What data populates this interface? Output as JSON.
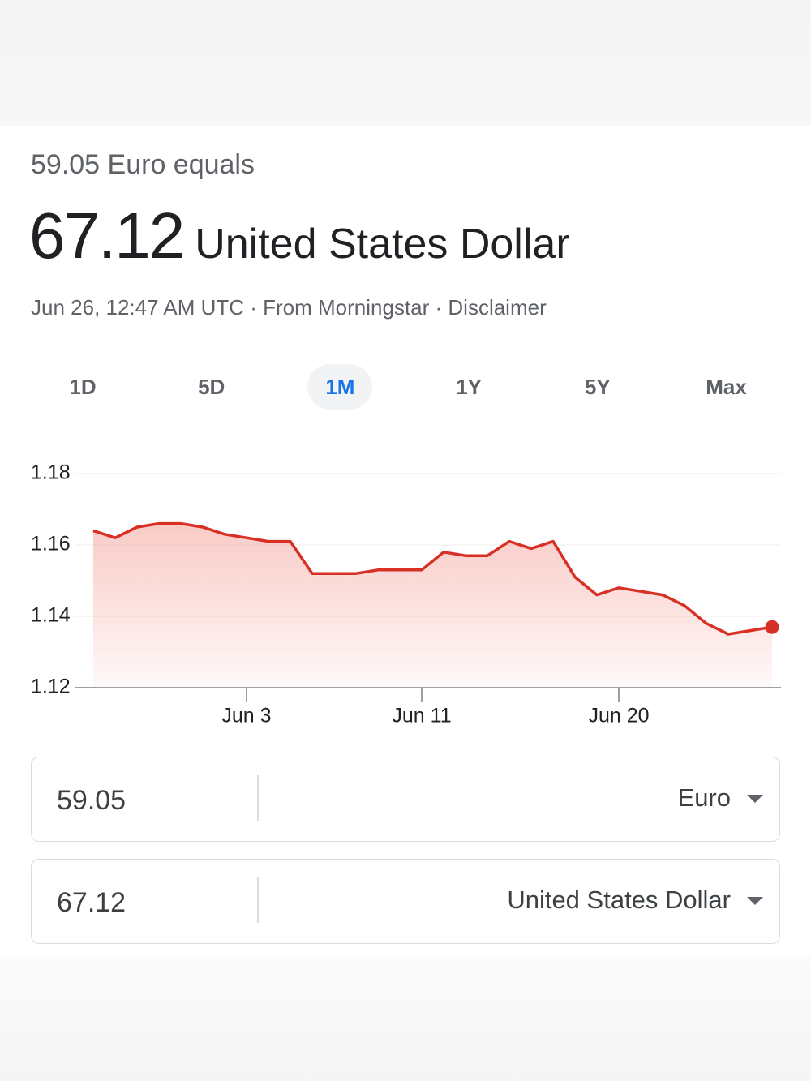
{
  "header": {
    "subtitle": "59.05 Euro equals",
    "amount": "67.12",
    "currency": "United States Dollar",
    "meta": "Jun 26, 12:47 AM UTC · From Morningstar · Disclaimer"
  },
  "ranges": {
    "labels": [
      "1D",
      "5D",
      "1M",
      "1Y",
      "5Y",
      "Max"
    ],
    "selected": 2
  },
  "chart_data": {
    "type": "line",
    "categories": [
      null,
      null,
      null,
      null,
      null,
      null,
      null,
      "Jun 3",
      null,
      null,
      null,
      null,
      null,
      null,
      null,
      "Jun 11",
      null,
      null,
      null,
      null,
      null,
      null,
      null,
      null,
      "Jun 20",
      null,
      null,
      null,
      null,
      null,
      null,
      null
    ],
    "values": [
      1.164,
      1.162,
      1.165,
      1.166,
      1.166,
      1.165,
      1.163,
      1.162,
      1.161,
      1.161,
      1.152,
      1.152,
      1.152,
      1.153,
      1.153,
      1.153,
      1.158,
      1.157,
      1.157,
      1.161,
      1.159,
      1.161,
      1.151,
      1.146,
      1.148,
      1.147,
      1.146,
      1.143,
      1.138,
      1.135,
      1.136,
      1.137
    ],
    "color": "#d93025",
    "ylim": [
      1.12,
      1.18
    ],
    "yticks": [
      1.12,
      1.14,
      1.16,
      1.18
    ],
    "grid": true
  },
  "converter": [
    {
      "amount": "59.05",
      "currency": "Euro"
    },
    {
      "amount": "67.12",
      "currency": "United States Dollar"
    }
  ]
}
